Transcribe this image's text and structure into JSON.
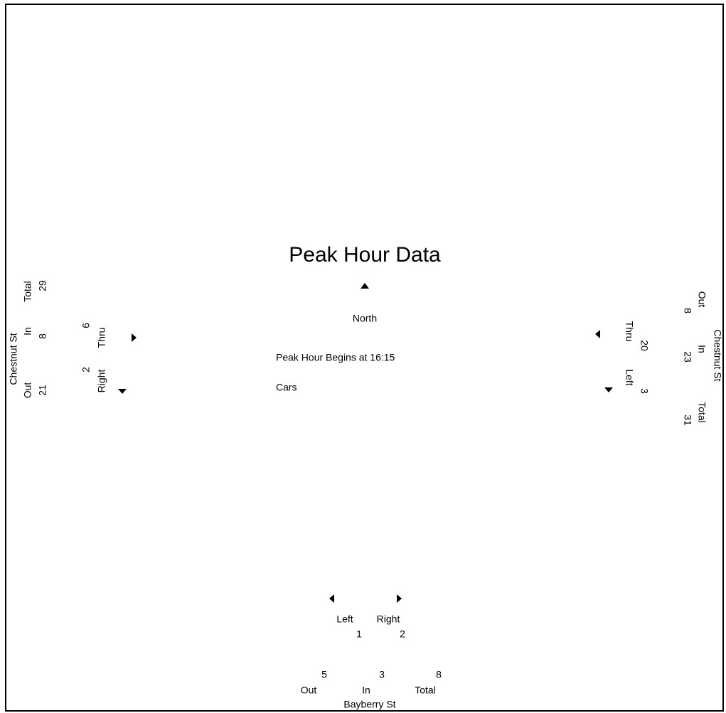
{
  "title": "Peak Hour Data",
  "north": "North",
  "peak_begins": "Peak Hour Begins at 16:15",
  "vehicle_type": "Cars",
  "west": {
    "street": "Chestnut St",
    "total": {
      "label": "Total",
      "value": 29
    },
    "in": {
      "label": "In",
      "value": 8
    },
    "out": {
      "label": "Out",
      "value": 21
    },
    "thru": {
      "label": "Thru",
      "value": 6
    },
    "right": {
      "label": "Right",
      "value": 2
    }
  },
  "east": {
    "street": "Chestnut St",
    "out": {
      "label": "Out",
      "value": 8
    },
    "in": {
      "label": "In",
      "value": 23
    },
    "total": {
      "label": "Total",
      "value": 31
    },
    "thru": {
      "label": "Thru",
      "value": 20
    },
    "left": {
      "label": "Left",
      "value": 3
    }
  },
  "south": {
    "street": "Bayberry St",
    "left": {
      "label": "Left",
      "value": 1
    },
    "right": {
      "label": "Right",
      "value": 2
    },
    "out": {
      "label": "Out",
      "value": 5
    },
    "in": {
      "label": "In",
      "value": 3
    },
    "total": {
      "label": "Total",
      "value": 8
    }
  }
}
